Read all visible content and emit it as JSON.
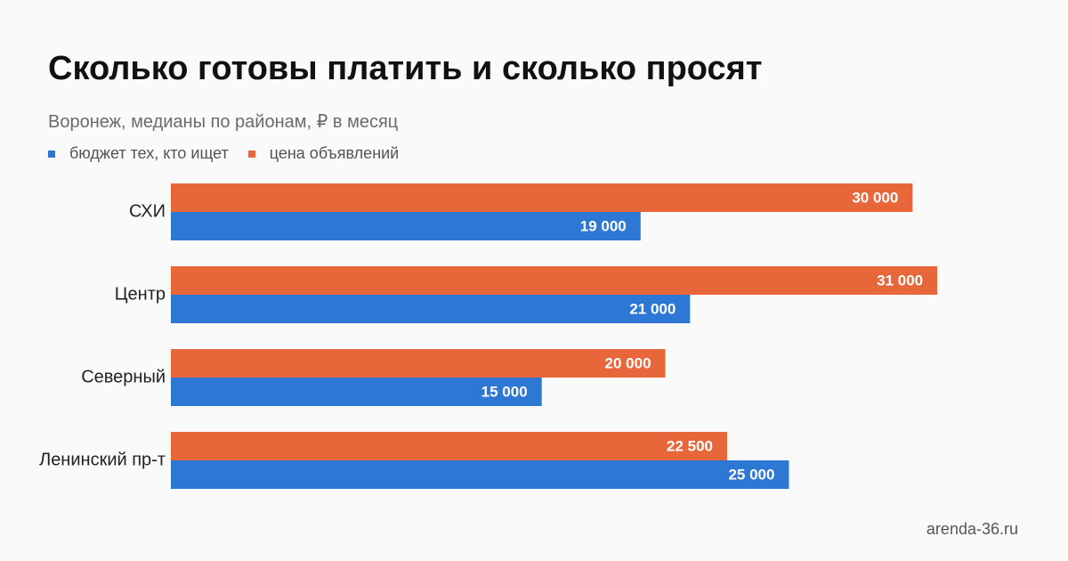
{
  "header": {
    "title": "Сколько готовы платить и сколько просят",
    "subtitle": "Воронеж, медианы по районам, ₽ в месяц"
  },
  "colors": {
    "budget": "#2d78d4",
    "asking": "#e8673a"
  },
  "chart_data": {
    "type": "bar",
    "orientation": "horizontal",
    "categories": [
      "СХИ",
      "Центр",
      "Северный",
      "Ленинский пр-т"
    ],
    "series": [
      {
        "name": "цена объявлений",
        "color": "#e8673a",
        "values": [
          30000,
          31000,
          20000,
          22500
        ],
        "labels": [
          "30 000",
          "31 000",
          "20 000",
          "22 500"
        ]
      },
      {
        "name": "бюджет тех, кто ищет",
        "color": "#2d78d4",
        "values": [
          19000,
          21000,
          15000,
          25000
        ],
        "labels": [
          "19 000",
          "21 000",
          "15 000",
          "25 000"
        ]
      }
    ],
    "legend": {
      "order": [
        1,
        0
      ],
      "position": "top-left"
    },
    "xlim": [
      0,
      36000
    ],
    "grid": false
  },
  "footer": {
    "source": "arenda-36.ru"
  }
}
